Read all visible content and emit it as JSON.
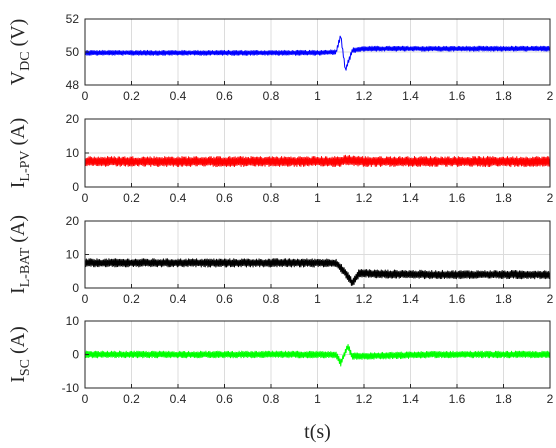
{
  "chart_data": [
    {
      "type": "line",
      "ylabel": "V_DC (V)",
      "ylabel_main": "V",
      "ylabel_sub": "DC",
      "ylabel_unit": " (V)",
      "xlim": [
        0,
        2
      ],
      "ylim": [
        48,
        52
      ],
      "yticks": [
        "48",
        "50",
        "52"
      ],
      "xticks": [
        "0",
        "0.2",
        "0.4",
        "0.6",
        "0.8",
        "1",
        "1.2",
        "1.4",
        "1.6",
        "1.8",
        "2"
      ],
      "grid": true,
      "series": [
        {
          "color": "#0000ff",
          "x": [
            0,
            0.2,
            0.4,
            0.6,
            0.8,
            1.0,
            1.08,
            1.1,
            1.12,
            1.15,
            1.2,
            1.4,
            1.6,
            1.8,
            2.0
          ],
          "y": [
            49.95,
            49.95,
            49.95,
            49.95,
            49.95,
            49.95,
            50.0,
            51.0,
            48.9,
            50.1,
            50.2,
            50.2,
            50.2,
            50.2,
            50.2
          ],
          "ripple": 0.3
        }
      ]
    },
    {
      "type": "line",
      "ylabel": "I_L-PV (A)",
      "ylabel_main": "I",
      "ylabel_sub": "L-PV",
      "ylabel_unit": " (A)",
      "xlim": [
        0,
        2
      ],
      "ylim": [
        0,
        20
      ],
      "yticks": [
        "0",
        "10",
        "20"
      ],
      "xticks": [
        "0",
        "0.2",
        "0.4",
        "0.6",
        "0.8",
        "1",
        "1.2",
        "1.4",
        "1.6",
        "1.8",
        "2"
      ],
      "grid": true,
      "series": [
        {
          "color": "#ff0000",
          "x": [
            0,
            0.5,
            1.0,
            1.1,
            1.12,
            1.2,
            1.5,
            2.0
          ],
          "y": [
            7.5,
            7.5,
            7.5,
            7.5,
            8.0,
            7.5,
            7.5,
            7.5
          ],
          "ripple": 3.0
        }
      ]
    },
    {
      "type": "line",
      "ylabel": "I_L-BAT (A)",
      "ylabel_main": "I",
      "ylabel_sub": "L-BAT",
      "ylabel_unit": " (A)",
      "xlim": [
        0,
        2
      ],
      "ylim": [
        0,
        20
      ],
      "yticks": [
        "0",
        "10",
        "20"
      ],
      "xticks": [
        "0",
        "0.2",
        "0.4",
        "0.6",
        "0.8",
        "1",
        "1.2",
        "1.4",
        "1.6",
        "1.8",
        "2"
      ],
      "grid": true,
      "series": [
        {
          "color": "#000000",
          "x": [
            0,
            0.5,
            1.0,
            1.08,
            1.12,
            1.15,
            1.18,
            1.25,
            1.5,
            2.0
          ],
          "y": [
            7.5,
            7.5,
            7.5,
            7.5,
            4.5,
            1.5,
            4.5,
            4.2,
            4.0,
            4.0
          ],
          "ripple": 2.5
        }
      ]
    },
    {
      "type": "line",
      "ylabel": "I_SC (A)",
      "ylabel_main": "I",
      "ylabel_sub": "SC",
      "ylabel_unit": " (A)",
      "xlabel": "t(s)",
      "xlim": [
        0,
        2
      ],
      "ylim": [
        -10,
        10
      ],
      "yticks": [
        "-10",
        "0",
        "10"
      ],
      "xticks": [
        "0",
        "0.2",
        "0.4",
        "0.6",
        "0.8",
        "1",
        "1.2",
        "1.4",
        "1.6",
        "1.8",
        "2"
      ],
      "grid": true,
      "series": [
        {
          "color": "#00ff00",
          "x": [
            0,
            0.5,
            1.0,
            1.08,
            1.1,
            1.13,
            1.15,
            1.2,
            1.5,
            2.0
          ],
          "y": [
            0,
            0,
            0,
            0,
            -2.5,
            2.5,
            -0.5,
            -0.5,
            0,
            0
          ],
          "ripple": 2.0
        }
      ]
    }
  ]
}
